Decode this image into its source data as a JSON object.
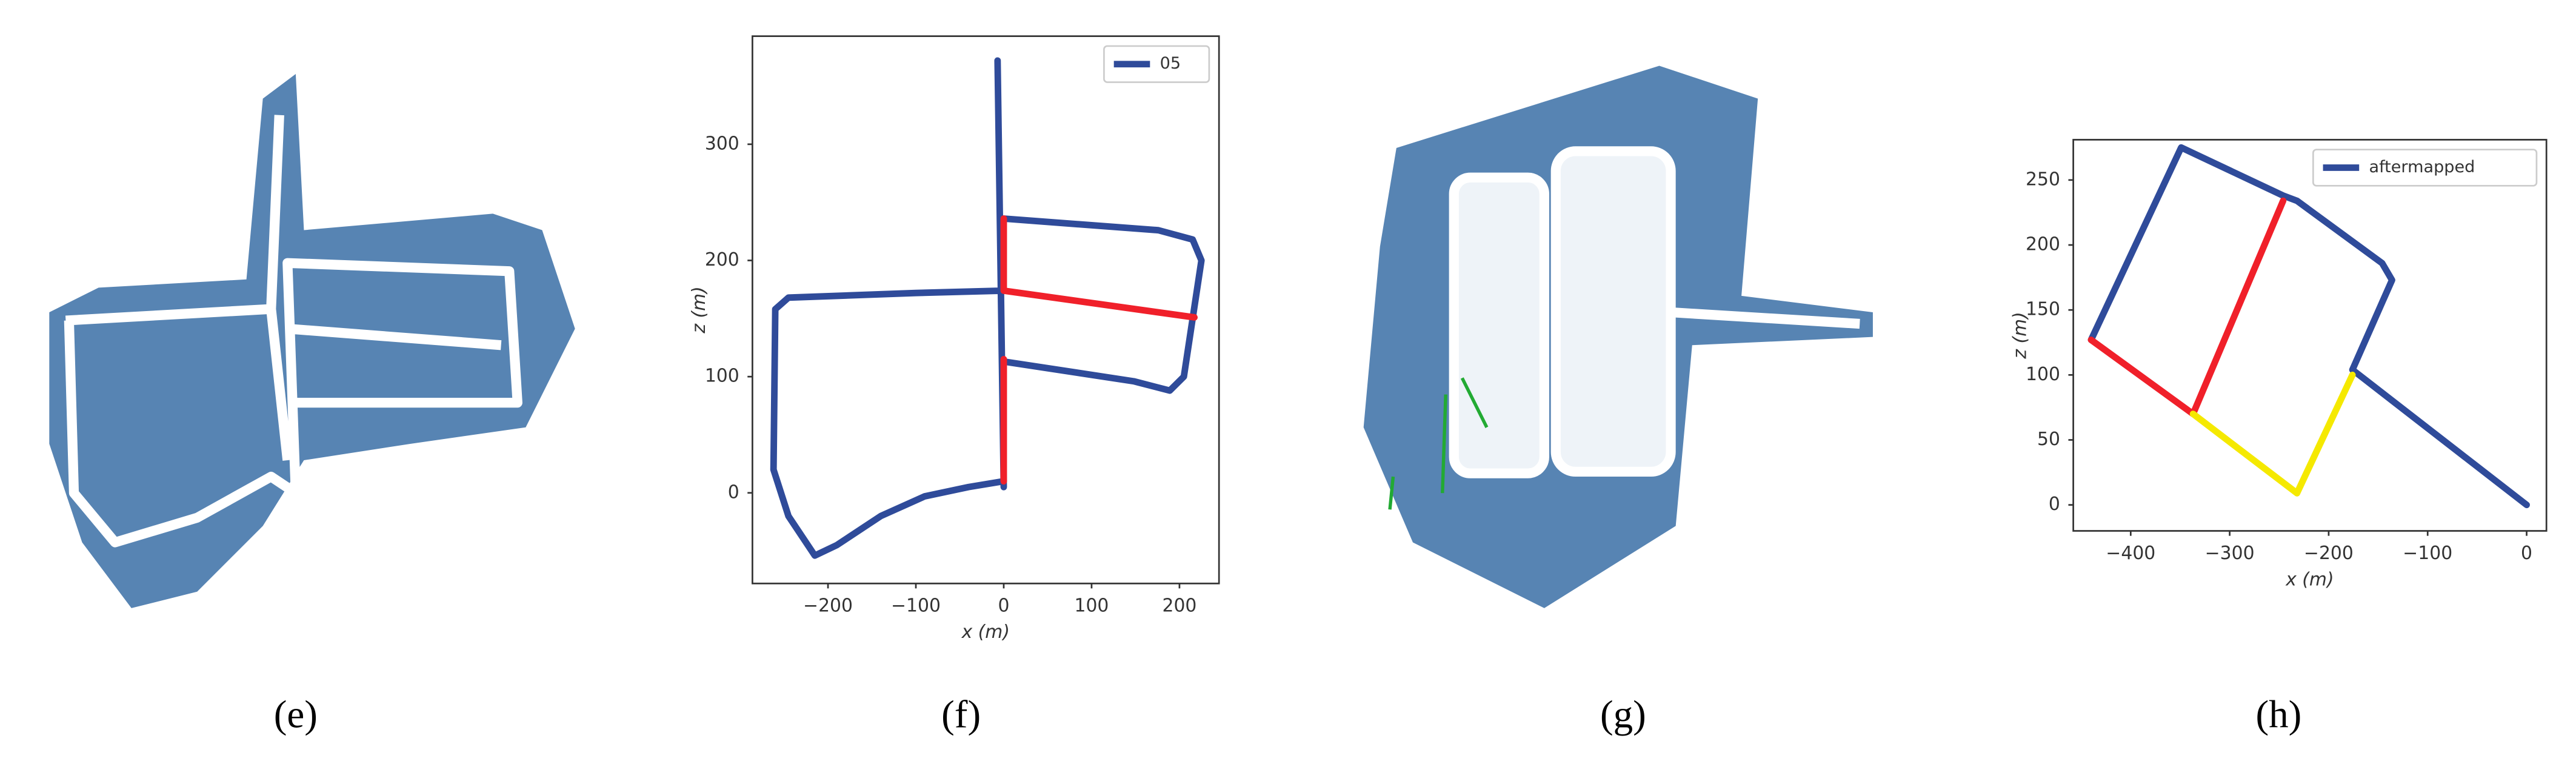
{
  "captions": [
    "(e)",
    "(f)",
    "(g)",
    "(h)"
  ],
  "chart_data": [
    {
      "type": "line",
      "xlabel": "x (m)",
      "ylabel": "z (m)",
      "xlim": [
        -286,
        245
      ],
      "ylim": [
        -78,
        393
      ],
      "xticks": [
        {
          "value": -200,
          "label": "−200"
        },
        {
          "value": -100,
          "label": "−100"
        },
        0,
        100,
        200
      ],
      "yticks": [
        0,
        100,
        200,
        300
      ],
      "legend": "upper right",
      "series": [
        {
          "name": "05",
          "color": "#2f4b9a",
          "x": [
            0,
            -7,
            null,
            0,
            176,
            215,
            225,
            205,
            189,
            148,
            0,
            null,
            0,
            -100,
            -245,
            -260,
            -262,
            -245,
            -215,
            -190,
            -140,
            -90,
            -40,
            0
          ],
          "values": [
            5,
            372,
            null,
            236,
            226,
            218,
            200,
            100,
            88,
            96,
            113,
            null,
            174,
            172,
            168,
            158,
            20,
            -20,
            -54,
            -45,
            -20,
            -3,
            5,
            10
          ]
        },
        {
          "color": "#f0202a",
          "x": [
            0,
            0,
            null,
            0,
            217,
            null,
            0,
            0
          ],
          "values": [
            236,
            174,
            null,
            174,
            151,
            null,
            115,
            10
          ]
        }
      ]
    },
    {
      "type": "line",
      "xlabel": "x (m)",
      "ylabel": "z (m)",
      "xlim": [
        -458,
        20
      ],
      "ylim": [
        -20,
        281
      ],
      "xticks": [
        {
          "value": -400,
          "label": "−400"
        },
        {
          "value": -300,
          "label": "−300"
        },
        {
          "value": -200,
          "label": "−200"
        },
        {
          "value": -100,
          "label": "−100"
        },
        0
      ],
      "yticks": [
        0,
        50,
        100,
        150,
        200,
        250
      ],
      "legend": "upper right",
      "series": [
        {
          "name": "aftermapped",
          "color": "#2f4b9a",
          "x": [
            0,
            -176,
            -136,
            -146,
            -232,
            -246,
            -349,
            -440
          ],
          "values": [
            0,
            104,
            173,
            186,
            234,
            238,
            275,
            127
          ]
        },
        {
          "color": "#f0202a",
          "x": [
            -440,
            -337,
            -246
          ],
          "values": [
            127,
            70,
            234
          ]
        },
        {
          "color": "#f5e900",
          "x": [
            -337,
            -232,
            -176
          ],
          "values": [
            70,
            9,
            100
          ]
        }
      ]
    }
  ]
}
